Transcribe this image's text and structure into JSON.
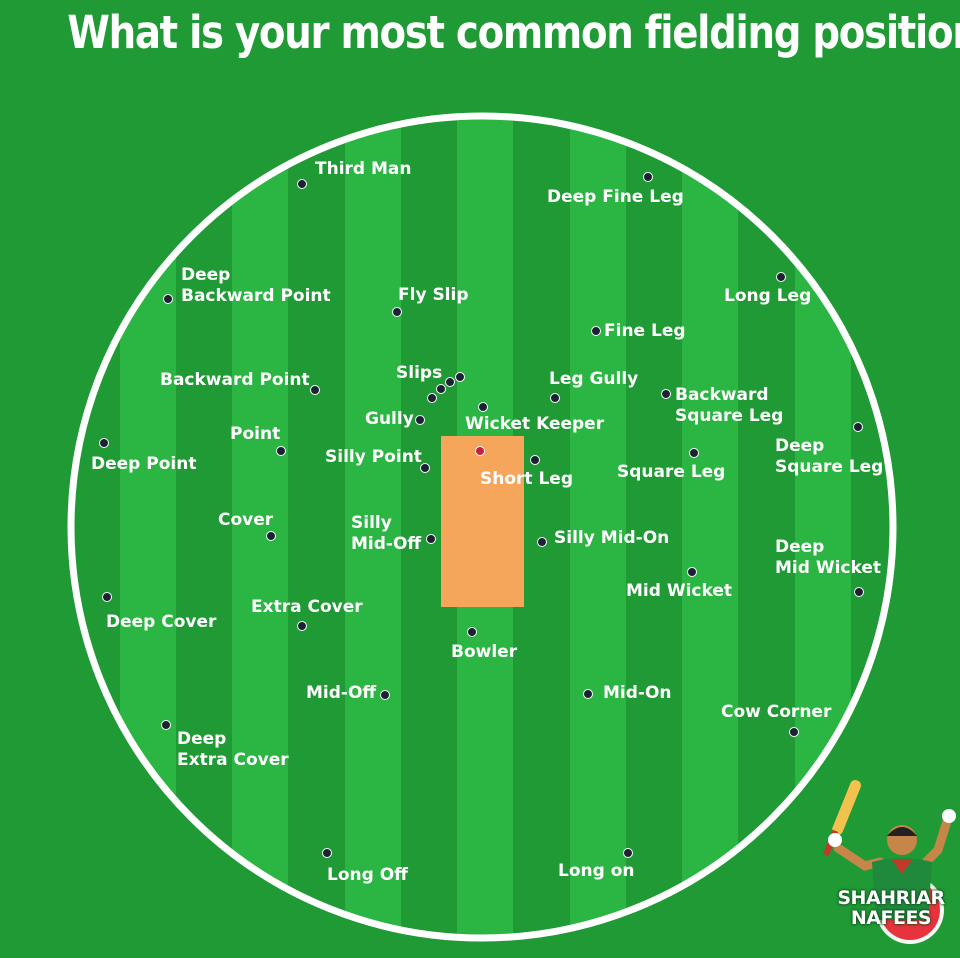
{
  "title": "What is your most common fielding position?",
  "colors": {
    "background": "#1f9a35",
    "stripe_dark": "#1f9a35",
    "stripe_light": "#2bb543",
    "boundary": "#ffffff",
    "pitch": "#f5a65b",
    "dot": "#1b2333",
    "keeper_dot": "#c8203a"
  },
  "positions": [
    {
      "id": "third-man",
      "label": "Third Man"
    },
    {
      "id": "deep-fine-leg",
      "label": "Deep Fine Leg"
    },
    {
      "id": "deep-backward-point",
      "label": "Deep\nBackward Point"
    },
    {
      "id": "fly-slip",
      "label": "Fly Slip"
    },
    {
      "id": "long-leg",
      "label": "Long Leg"
    },
    {
      "id": "fine-leg",
      "label": "Fine Leg"
    },
    {
      "id": "backward-point",
      "label": "Backward Point"
    },
    {
      "id": "slips",
      "label": "Slips"
    },
    {
      "id": "leg-gully",
      "label": "Leg Gully"
    },
    {
      "id": "backward-square-leg",
      "label": "Backward\nSquare Leg"
    },
    {
      "id": "gully",
      "label": "Gully"
    },
    {
      "id": "wicket-keeper",
      "label": "Wicket Keeper"
    },
    {
      "id": "point",
      "label": "Point"
    },
    {
      "id": "deep-point",
      "label": "Deep Point"
    },
    {
      "id": "silly-point",
      "label": "Silly Point"
    },
    {
      "id": "short-leg",
      "label": "Short Leg"
    },
    {
      "id": "square-leg",
      "label": "Square Leg"
    },
    {
      "id": "deep-square-leg",
      "label": "Deep\nSquare Leg"
    },
    {
      "id": "cover",
      "label": "Cover"
    },
    {
      "id": "silly-mid-off",
      "label": "Silly\nMid-Off"
    },
    {
      "id": "silly-mid-on",
      "label": "Silly Mid-On"
    },
    {
      "id": "deep-mid-wicket",
      "label": "Deep\nMid Wicket"
    },
    {
      "id": "mid-wicket",
      "label": "Mid Wicket"
    },
    {
      "id": "deep-cover",
      "label": "Deep Cover"
    },
    {
      "id": "extra-cover",
      "label": "Extra Cover"
    },
    {
      "id": "bowler",
      "label": "Bowler"
    },
    {
      "id": "mid-off",
      "label": "Mid-Off"
    },
    {
      "id": "mid-on",
      "label": "Mid-On"
    },
    {
      "id": "cow-corner",
      "label": "Cow Corner"
    },
    {
      "id": "deep-extra-cover",
      "label": "Deep\nExtra Cover"
    },
    {
      "id": "long-off",
      "label": "Long Off"
    },
    {
      "id": "long-on",
      "label": "Long on"
    }
  ],
  "logo": {
    "line1": "SHAHRIAR",
    "line2": "NAFEES",
    "icon": "cricketer-celebrating-icon"
  }
}
